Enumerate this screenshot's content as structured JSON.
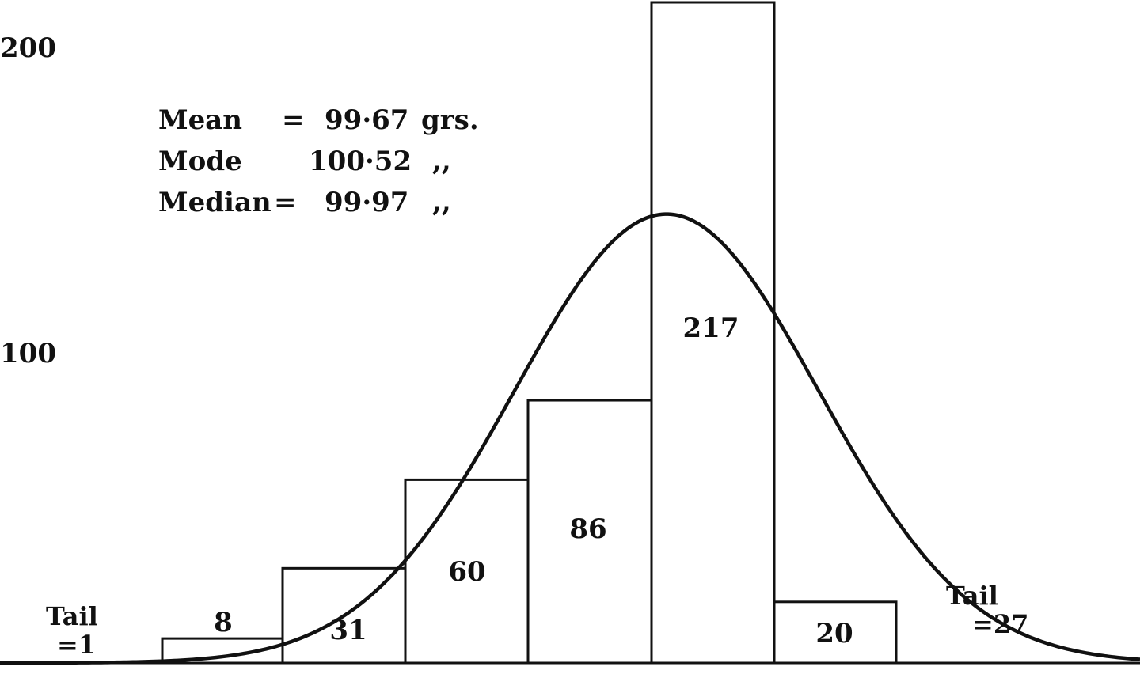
{
  "chart_data": {
    "type": "bar",
    "yticks": [
      {
        "value": 200,
        "label": "200"
      },
      {
        "value": 100,
        "label": "100"
      }
    ],
    "values": [
      8,
      31,
      60,
      86,
      217,
      20
    ],
    "value_labels": [
      "8",
      "31",
      "60",
      "86",
      "217",
      "20"
    ],
    "tails": {
      "left": {
        "line1": "Tail",
        "line2": "=1",
        "value": 1
      },
      "right": {
        "line1": "Tail",
        "line2": "=27",
        "value": 27
      }
    },
    "stats": [
      {
        "label": "Mean",
        "sep": "=",
        "value": "99·67",
        "unit": "grs."
      },
      {
        "label": "Mode",
        "sep": "",
        "value": "100·52",
        "unit": ",,"
      },
      {
        "label": "Median",
        "sep": "=",
        "value": "99·97",
        "unit": ",,"
      }
    ],
    "curve": {
      "type": "normal-fit",
      "peak": 147
    }
  }
}
